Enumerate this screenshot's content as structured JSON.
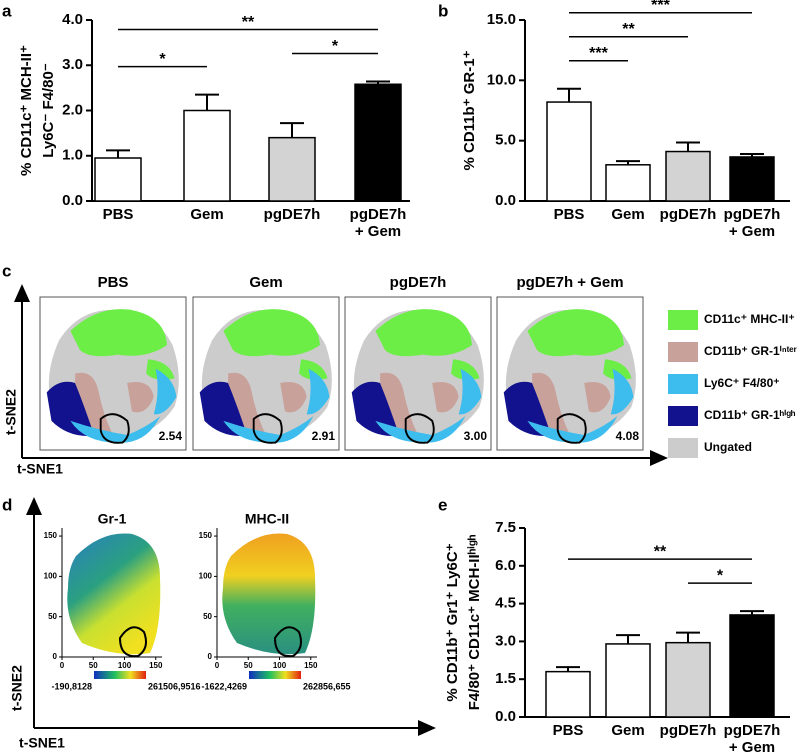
{
  "panels": {
    "letters": [
      "a",
      "b",
      "c",
      "d",
      "e"
    ],
    "c": {
      "titles": [
        "PBS",
        "Gem",
        "pgDE7h",
        "pgDE7h + Gem"
      ],
      "gate_labels": [
        "2.54",
        "2.91",
        "3.00",
        "4.08"
      ],
      "legend": [
        {
          "name": "CD11c⁺ MHC-II⁺",
          "color": "#6cee46"
        },
        {
          "name": "CD11b⁺ GR-1ⁱⁿᵗᵉʳ",
          "color": "#c9a19b"
        },
        {
          "name": "Ly6C⁺  F4/80⁺",
          "color": "#3cbdee"
        },
        {
          "name": "CD11b⁺ GR-1ʰⁱᵍʰ",
          "color": "#12128e"
        },
        {
          "name": "Ungated",
          "color": "#cccccc"
        }
      ],
      "ylabel": "t-SNE2",
      "xlabel": "t-SNE1"
    },
    "d": {
      "titles": [
        "Gr-1",
        "MHC-II"
      ],
      "xticks": [
        0,
        50,
        100,
        150
      ],
      "yticks": [
        0,
        50,
        100,
        150
      ],
      "lim": [
        0,
        160
      ],
      "colorbar_labels": [
        [
          "-190,8128",
          "261506,9516"
        ],
        [
          "-1622,4269",
          "262856,655"
        ]
      ],
      "ylabel": "t-SNE2",
      "xlabel": "t-SNE1"
    }
  },
  "chart_data": [
    {
      "type": "bar",
      "ylabel": [
        "% CD11c⁺ MCH-II⁺",
        "Ly6C⁻ F4/80⁻"
      ],
      "categories": [
        "PBS",
        "Gem",
        "pgDE7h",
        "pgDE7h\n+ Gem"
      ],
      "values": [
        0.95,
        2.0,
        1.4,
        2.58
      ],
      "errors": [
        0.17,
        0.35,
        0.32,
        0.06
      ],
      "colors": [
        "#ffffff",
        "#ffffff",
        "#d3d3d3",
        "#000000"
      ],
      "ylim": [
        0,
        4
      ],
      "yticks": [
        {
          "value": 0,
          "label": "0.0"
        },
        {
          "value": 1,
          "label": "1.0"
        },
        {
          "value": 2,
          "label": "2.0"
        },
        {
          "value": 3,
          "label": "3.0"
        },
        {
          "value": 4,
          "label": "4.0"
        }
      ],
      "significance": [
        {
          "from": 0,
          "to": 1,
          "label": "*"
        },
        {
          "from": 2,
          "to": 3,
          "label": "*"
        },
        {
          "from": 0,
          "to": 3,
          "label": "**"
        }
      ]
    },
    {
      "type": "bar",
      "ylabel": [
        "% CD11b⁺ GR-1⁺"
      ],
      "categories": [
        "PBS",
        "Gem",
        "pgDE7h",
        "pgDE7h\n+ Gem"
      ],
      "values": [
        8.2,
        3.0,
        4.1,
        3.65
      ],
      "errors": [
        1.1,
        0.3,
        0.75,
        0.25
      ],
      "colors": [
        "#ffffff",
        "#ffffff",
        "#d3d3d3",
        "#000000"
      ],
      "ylim": [
        0,
        15
      ],
      "yticks": [
        {
          "value": 0,
          "label": "0.0"
        },
        {
          "value": 5,
          "label": "5.0"
        },
        {
          "value": 10,
          "label": "10.0"
        },
        {
          "value": 15,
          "label": "15.0"
        }
      ],
      "significance": [
        {
          "from": 0,
          "to": 1,
          "label": "***"
        },
        {
          "from": 0,
          "to": 2,
          "label": "**"
        },
        {
          "from": 0,
          "to": 3,
          "label": "***"
        }
      ]
    },
    {
      "type": "bar",
      "ylabel": [
        "% CD11b⁺ Gr1⁺ Ly6C⁺",
        "F4/80⁺ CD11c⁺ MCH-IIʰⁱᵍʰ"
      ],
      "categories": [
        "PBS",
        "Gem",
        "pgDE7h",
        "pgDE7h\n+ Gem"
      ],
      "values": [
        1.8,
        2.9,
        2.95,
        4.05
      ],
      "errors": [
        0.18,
        0.35,
        0.4,
        0.15
      ],
      "colors": [
        "#ffffff",
        "#ffffff",
        "#d3d3d3",
        "#000000"
      ],
      "ylim": [
        0,
        7.5
      ],
      "yticks": [
        {
          "value": 0,
          "label": "0.0"
        },
        {
          "value": 1.5,
          "label": "1.5"
        },
        {
          "value": 3,
          "label": "3.0"
        },
        {
          "value": 4.5,
          "label": "4.5"
        },
        {
          "value": 6,
          "label": "6.0"
        },
        {
          "value": 7.5,
          "label": "7.5"
        }
      ],
      "significance": [
        {
          "from": 2,
          "to": 3,
          "label": "*"
        },
        {
          "from": 0,
          "to": 3,
          "label": "**"
        }
      ]
    }
  ]
}
